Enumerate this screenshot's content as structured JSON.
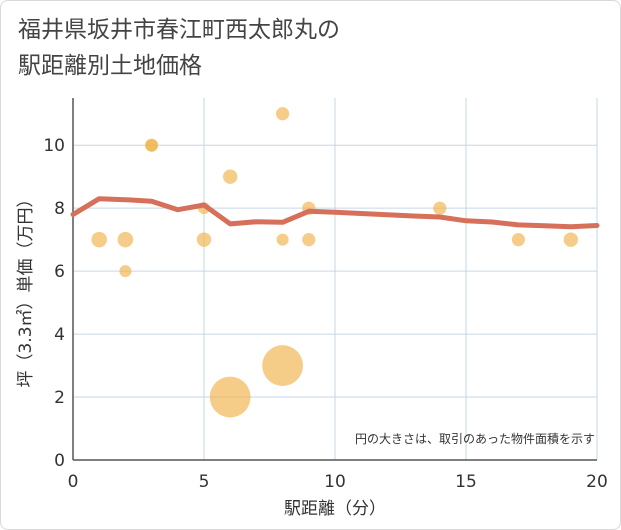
{
  "title": {
    "line1": "福井県坂井市春江町西太郎丸の",
    "line2": "駅距離別土地価格"
  },
  "chart_data": {
    "type": "scatter",
    "title": "福井県坂井市春江町西太郎丸の駅距離別土地価格",
    "xlabel": "駅距離（分）",
    "ylabel": "坪（3.3㎡）単価（万円）",
    "xlim": [
      0,
      20
    ],
    "ylim": [
      0,
      11.5
    ],
    "xticks": [
      0,
      5,
      10,
      15,
      20
    ],
    "yticks": [
      0,
      2,
      4,
      6,
      8,
      10
    ],
    "grid": true,
    "note": "円の大きさは、取引のあった物件面積を示す",
    "scatter": [
      {
        "x": 1,
        "y": 7,
        "size": 1.3
      },
      {
        "x": 2,
        "y": 7,
        "size": 1.3
      },
      {
        "x": 2,
        "y": 6,
        "size": 1.0
      },
      {
        "x": 3,
        "y": 10,
        "size": 1.1
      },
      {
        "x": 3,
        "y": 10,
        "size": 1.0
      },
      {
        "x": 5,
        "y": 8,
        "size": 1.0
      },
      {
        "x": 5,
        "y": 7,
        "size": 1.2
      },
      {
        "x": 6,
        "y": 9,
        "size": 1.2
      },
      {
        "x": 6,
        "y": 2,
        "size": 3.4
      },
      {
        "x": 8,
        "y": 11,
        "size": 1.1
      },
      {
        "x": 8,
        "y": 7,
        "size": 1.0
      },
      {
        "x": 8,
        "y": 3,
        "size": 3.4
      },
      {
        "x": 9,
        "y": 8,
        "size": 1.1
      },
      {
        "x": 9,
        "y": 7,
        "size": 1.1
      },
      {
        "x": 14,
        "y": 8,
        "size": 1.1
      },
      {
        "x": 17,
        "y": 7,
        "size": 1.1
      },
      {
        "x": 19,
        "y": 7,
        "size": 1.2
      }
    ],
    "trend_line": {
      "x": [
        0,
        1,
        2,
        3,
        4,
        5,
        6,
        7,
        8,
        9,
        10,
        11,
        12,
        13,
        14,
        15,
        16,
        17,
        18,
        19,
        20
      ],
      "y": [
        7.8,
        8.3,
        8.27,
        8.22,
        7.95,
        8.1,
        7.5,
        7.57,
        7.55,
        7.9,
        7.87,
        7.83,
        7.79,
        7.75,
        7.72,
        7.6,
        7.56,
        7.47,
        7.44,
        7.41,
        7.45
      ]
    },
    "colors": {
      "bubble": "#f0b24a",
      "trend": "#d6705a",
      "grid": "#c5d6e6",
      "axis": "#555555"
    }
  }
}
